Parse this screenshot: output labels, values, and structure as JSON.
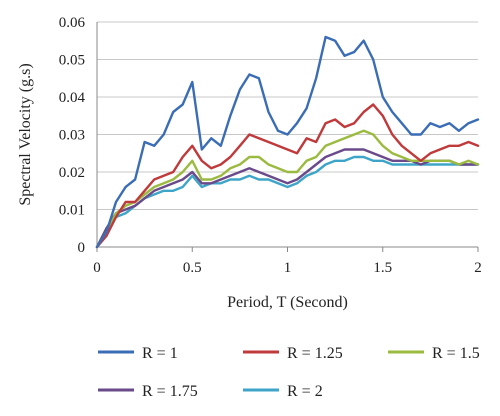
{
  "chart_data": {
    "type": "line",
    "xlabel": "Period, T (Second)",
    "ylabel": "Spectral Velocity (g.s)",
    "xlim": [
      0,
      2
    ],
    "ylim": [
      0,
      0.06
    ],
    "xticks": [
      "0",
      "0.5",
      "1",
      "1.5",
      "2"
    ],
    "yticks": [
      "0",
      "0.01",
      "0.02",
      "0.03",
      "0.04",
      "0.05",
      "0.06"
    ],
    "grid": "horizontal",
    "legend_position": "bottom",
    "x": [
      0,
      0.05,
      0.1,
      0.15,
      0.2,
      0.25,
      0.3,
      0.35,
      0.4,
      0.45,
      0.5,
      0.55,
      0.6,
      0.65,
      0.7,
      0.75,
      0.8,
      0.85,
      0.9,
      0.95,
      1.0,
      1.05,
      1.1,
      1.15,
      1.2,
      1.25,
      1.3,
      1.35,
      1.4,
      1.45,
      1.5,
      1.55,
      1.6,
      1.65,
      1.7,
      1.75,
      1.8,
      1.85,
      1.9,
      1.95,
      2.0
    ],
    "series": [
      {
        "name": "R = 1",
        "color": "#3a6db5",
        "values": [
          0,
          0.004,
          0.012,
          0.016,
          0.018,
          0.028,
          0.027,
          0.03,
          0.036,
          0.038,
          0.044,
          0.026,
          0.029,
          0.027,
          0.035,
          0.042,
          0.046,
          0.045,
          0.036,
          0.031,
          0.03,
          0.033,
          0.037,
          0.045,
          0.056,
          0.055,
          0.051,
          0.052,
          0.055,
          0.05,
          0.04,
          0.036,
          0.033,
          0.03,
          0.03,
          0.033,
          0.032,
          0.033,
          0.031,
          0.033,
          0.034
        ]
      },
      {
        "name": "R = 1.25",
        "color": "#c0393b",
        "values": [
          0,
          0.003,
          0.008,
          0.012,
          0.012,
          0.015,
          0.018,
          0.019,
          0.02,
          0.024,
          0.027,
          0.023,
          0.021,
          0.022,
          0.024,
          0.027,
          0.03,
          0.029,
          0.028,
          0.027,
          0.026,
          0.025,
          0.029,
          0.028,
          0.033,
          0.034,
          0.032,
          0.033,
          0.036,
          0.038,
          0.035,
          0.03,
          0.027,
          0.025,
          0.023,
          0.025,
          0.026,
          0.027,
          0.027,
          0.028,
          0.027
        ]
      },
      {
        "name": "R = 1.5",
        "color": "#9bbb40",
        "values": [
          0,
          0.004,
          0.009,
          0.011,
          0.012,
          0.014,
          0.016,
          0.017,
          0.018,
          0.02,
          0.023,
          0.018,
          0.018,
          0.019,
          0.021,
          0.022,
          0.024,
          0.024,
          0.022,
          0.021,
          0.02,
          0.02,
          0.023,
          0.024,
          0.027,
          0.028,
          0.029,
          0.03,
          0.031,
          0.03,
          0.027,
          0.025,
          0.024,
          0.023,
          0.023,
          0.023,
          0.023,
          0.023,
          0.022,
          0.023,
          0.022
        ]
      },
      {
        "name": "R = 1.75",
        "color": "#6a4a8a",
        "values": [
          0,
          0.005,
          0.009,
          0.01,
          0.011,
          0.013,
          0.015,
          0.016,
          0.017,
          0.018,
          0.02,
          0.017,
          0.017,
          0.018,
          0.019,
          0.02,
          0.021,
          0.02,
          0.019,
          0.018,
          0.017,
          0.018,
          0.02,
          0.022,
          0.024,
          0.025,
          0.026,
          0.026,
          0.026,
          0.025,
          0.024,
          0.023,
          0.023,
          0.023,
          0.022,
          0.023,
          0.023,
          0.023,
          0.022,
          0.022,
          0.022
        ]
      },
      {
        "name": "R = 2",
        "color": "#3ea5c8",
        "values": [
          0,
          0.005,
          0.008,
          0.009,
          0.011,
          0.013,
          0.014,
          0.015,
          0.015,
          0.016,
          0.019,
          0.016,
          0.017,
          0.017,
          0.018,
          0.018,
          0.019,
          0.018,
          0.018,
          0.017,
          0.016,
          0.017,
          0.019,
          0.02,
          0.022,
          0.023,
          0.023,
          0.024,
          0.024,
          0.023,
          0.023,
          0.022,
          0.022,
          0.022,
          0.022,
          0.022,
          0.022,
          0.022,
          0.022,
          0.022,
          0.022
        ]
      }
    ]
  }
}
